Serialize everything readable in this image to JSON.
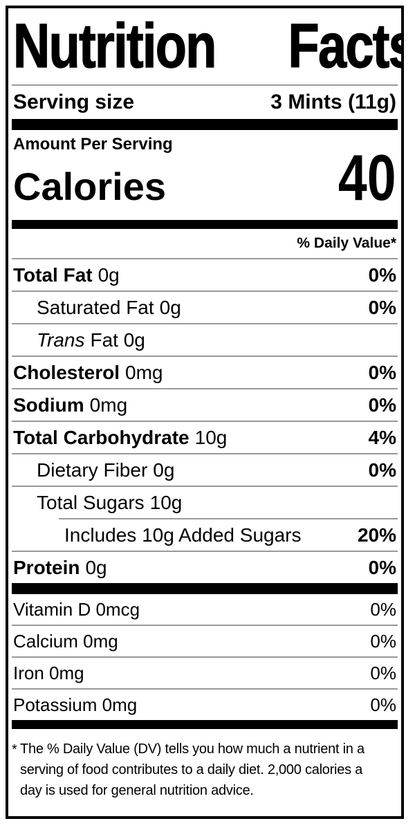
{
  "header": {
    "title_words": [
      "Nutrition",
      "Facts"
    ]
  },
  "serving": {
    "label": "Serving size",
    "value": "3 Mints (11g)"
  },
  "calories": {
    "section_label": "Amount Per Serving",
    "label": "Calories",
    "value": "40"
  },
  "daily_value_header": "% Daily Value*",
  "nutrients": [
    {
      "name": "Total Fat",
      "amount": "0g",
      "dv": "0%"
    },
    {
      "name": "Saturated Fat",
      "amount": "0g",
      "dv": "0%"
    },
    {
      "name": "Trans",
      "amount": "Fat 0g",
      "dv": ""
    },
    {
      "name": "Cholesterol",
      "amount": "0mg",
      "dv": "0%"
    },
    {
      "name": "Sodium",
      "amount": "0mg",
      "dv": "0%"
    },
    {
      "name": "Total Carbohydrate",
      "amount": "10g",
      "dv": "4%"
    },
    {
      "name": "Dietary Fiber",
      "amount": "0g",
      "dv": "0%"
    },
    {
      "name": "Total Sugars",
      "amount": "10g",
      "dv": ""
    },
    {
      "name": "Includes 10g Added Sugars",
      "amount": "",
      "dv": "20%"
    },
    {
      "name": "Protein",
      "amount": "0g",
      "dv": "0%"
    }
  ],
  "micronutrients": [
    {
      "label": "Vitamin D 0mcg",
      "dv": "0%"
    },
    {
      "label": "Calcium 0mg",
      "dv": "0%"
    },
    {
      "label": "Iron 0mg",
      "dv": "0%"
    },
    {
      "label": "Potassium 0mg",
      "dv": "0%"
    }
  ],
  "footnote": {
    "marker": "*",
    "lines": [
      "The % Daily Value (DV) tells you how much a nutrient in a",
      "serving of food contributes to a daily diet. 2,000 calories a",
      "day is used for general nutrition advice."
    ]
  },
  "colors": {
    "ink": "#000000",
    "divider": "#999999",
    "background": "#ffffff"
  }
}
